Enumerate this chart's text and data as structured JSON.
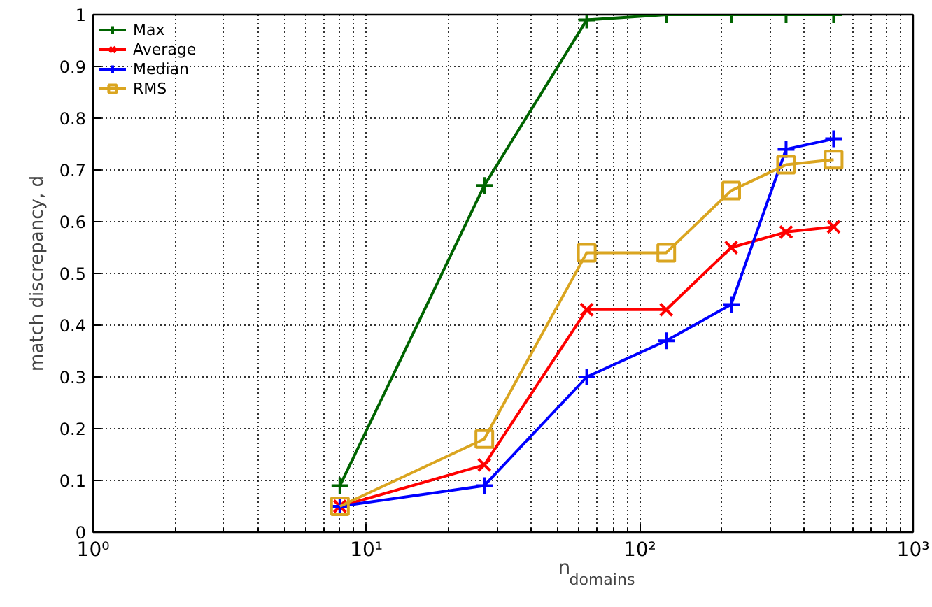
{
  "chart_data": {
    "type": "line",
    "xlabel": "n$_{domains}$",
    "ylabel": "match discrepancy, d",
    "log": "x",
    "x": [
      8,
      27,
      64,
      125,
      216,
      343,
      512
    ],
    "xlim": [
      1,
      1000
    ],
    "xticks": [
      {
        "value": 1,
        "label": "10⁰"
      },
      {
        "value": 10,
        "label": "10¹"
      },
      {
        "value": 100,
        "label": "10²"
      },
      {
        "value": 1000,
        "label": "10³"
      }
    ],
    "ylim": [
      0,
      1
    ],
    "yticks": [
      0,
      0.1,
      0.2,
      0.3,
      0.4,
      0.5,
      0.6,
      0.7,
      0.8,
      0.9,
      1
    ],
    "grid": true,
    "legend": "top left",
    "line_style": "solid",
    "series": [
      {
        "name": "Max",
        "color": "#006400",
        "marker": "cross",
        "values": [
          0.09,
          0.67,
          0.99,
          1.0,
          1.0,
          1.0,
          1.0
        ]
      },
      {
        "name": "Average",
        "color": "#ff0000",
        "marker": "x",
        "values": [
          0.05,
          0.13,
          0.43,
          0.43,
          0.55,
          0.58,
          0.59
        ]
      },
      {
        "name": "Median",
        "color": "#0000ff",
        "marker": "cross",
        "values": [
          0.05,
          0.09,
          0.3,
          0.37,
          0.44,
          0.74,
          0.76
        ]
      },
      {
        "name": "RMS",
        "color": "#daa520",
        "marker": "square",
        "values": [
          0.05,
          0.18,
          0.54,
          0.54,
          0.66,
          0.71,
          0.72
        ]
      }
    ]
  }
}
